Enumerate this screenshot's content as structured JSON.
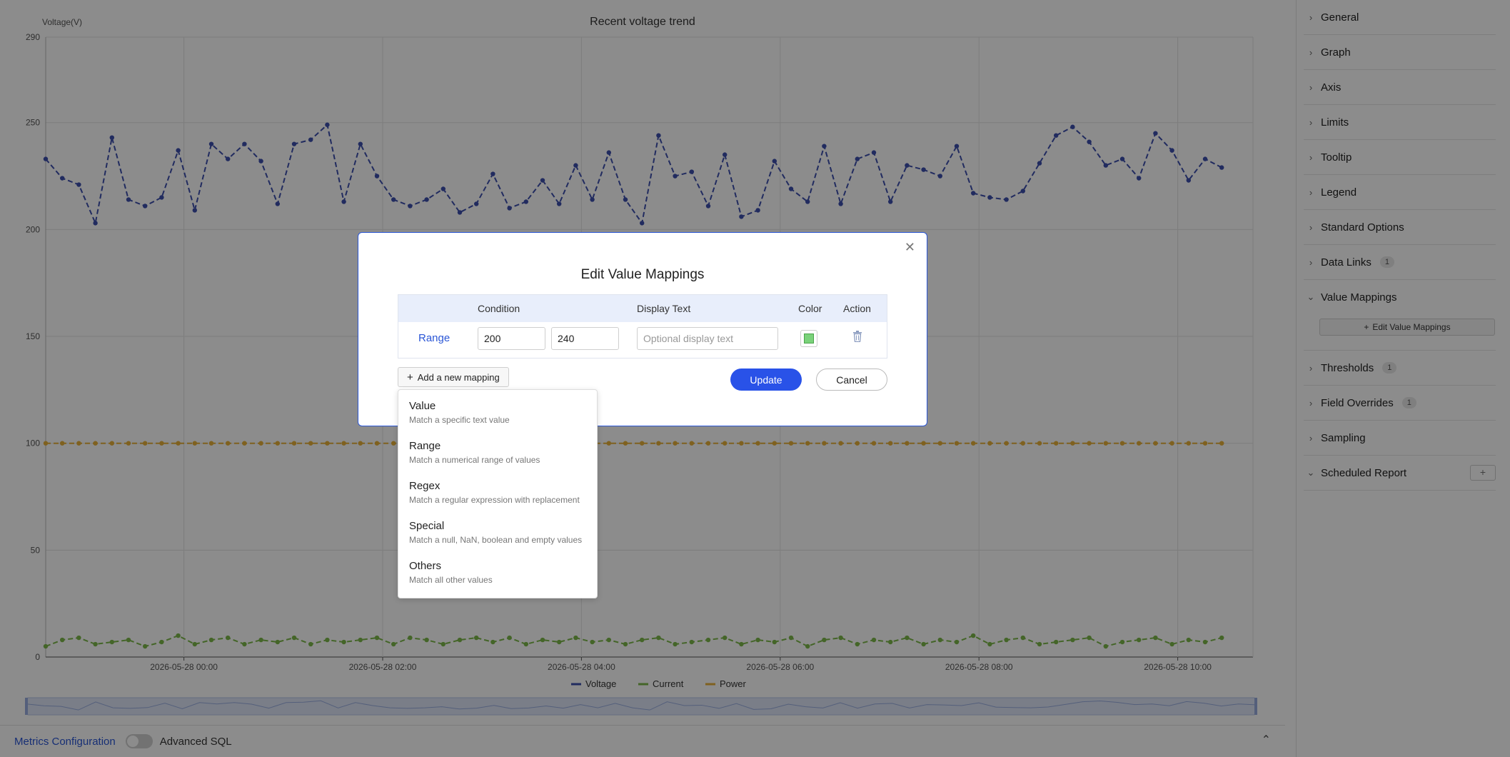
{
  "chart": {
    "title": "Recent voltage trend",
    "y_axis_label": "Voltage(V)"
  },
  "chart_data": {
    "type": "line",
    "title": "Recent voltage trend",
    "ylabel": "Voltage(V)",
    "xlabel": "",
    "ylim": [
      0,
      290
    ],
    "yticks": [
      0,
      50,
      100,
      150,
      200,
      250,
      290
    ],
    "x_tick_labels": [
      "2026-05-28 00:00",
      "2026-05-28 02:00",
      "2026-05-28 04:00",
      "2026-05-28 06:00",
      "2026-05-28 08:00",
      "2026-05-28 10:00"
    ],
    "x_start": "2026-05-27 22:38",
    "x_interval_minutes": 10,
    "grid": true,
    "legend_position": "bottom",
    "series": [
      {
        "name": "Voltage",
        "color": "#3d4fae",
        "values": [
          233,
          224,
          221,
          203,
          243,
          214,
          211,
          215,
          237,
          209,
          240,
          233,
          240,
          232,
          212,
          240,
          242,
          249,
          213,
          240,
          225,
          214,
          211,
          214,
          219,
          208,
          212,
          226,
          210,
          213,
          223,
          212,
          230,
          214,
          236,
          214,
          203,
          244,
          225,
          227,
          211,
          235,
          206,
          209,
          232,
          219,
          213,
          239,
          212,
          233,
          236,
          213,
          230,
          228,
          225,
          239,
          217,
          215,
          214,
          218,
          231,
          244,
          248,
          241,
          230,
          233,
          224,
          245,
          237,
          223,
          233,
          229
        ]
      },
      {
        "name": "Current",
        "color": "#7cb94a",
        "values": [
          5,
          8,
          9,
          6,
          7,
          8,
          5,
          7,
          10,
          6,
          8,
          9,
          6,
          8,
          7,
          9,
          6,
          8,
          7,
          8,
          9,
          6,
          9,
          8,
          6,
          8,
          9,
          7,
          9,
          6,
          8,
          7,
          9,
          7,
          8,
          6,
          8,
          9,
          6,
          7,
          8,
          9,
          6,
          8,
          7,
          9,
          5,
          8,
          9,
          6,
          8,
          7,
          9,
          6,
          8,
          7,
          10,
          6,
          8,
          9,
          6,
          7,
          8,
          9,
          5,
          7,
          8,
          9,
          6,
          8,
          7,
          9
        ]
      },
      {
        "name": "Power",
        "color": "#e8b13a",
        "values": [
          100,
          100,
          100,
          100,
          100,
          100,
          100,
          100,
          100,
          100,
          100,
          100,
          100,
          100,
          100,
          100,
          100,
          100,
          100,
          100,
          100,
          100,
          100,
          100,
          100,
          100,
          100,
          100,
          100,
          100,
          100,
          100,
          100,
          100,
          100,
          100,
          100,
          100,
          100,
          100,
          100,
          100,
          100,
          100,
          100,
          100,
          100,
          100,
          100,
          100,
          100,
          100,
          100,
          100,
          100,
          100,
          100,
          100,
          100,
          100,
          100,
          100,
          100,
          100,
          100,
          100,
          100,
          100,
          100,
          100,
          100,
          100
        ]
      }
    ]
  },
  "sidebar": {
    "items_top": [
      {
        "label": "General"
      },
      {
        "label": "Graph"
      },
      {
        "label": "Axis"
      },
      {
        "label": "Limits"
      },
      {
        "label": "Tooltip"
      },
      {
        "label": "Legend"
      },
      {
        "label": "Standard Options"
      },
      {
        "label": "Data Links",
        "badge": "1"
      }
    ],
    "value_mappings": {
      "label": "Value Mappings",
      "edit_button": "Edit Value Mappings"
    },
    "items_bottom": [
      {
        "label": "Thresholds",
        "badge": "1"
      },
      {
        "label": "Field Overrides",
        "badge": "1"
      },
      {
        "label": "Sampling"
      }
    ],
    "scheduled_report": {
      "label": "Scheduled Report",
      "add_symbol": "+"
    }
  },
  "bottom_bar": {
    "metrics_configuration": "Metrics Configuration",
    "advanced_sql": "Advanced SQL"
  },
  "modal": {
    "title": "Edit Value Mappings",
    "columns": {
      "condition": "Condition",
      "display_text": "Display Text",
      "color": "Color",
      "action": "Action"
    },
    "rows": [
      {
        "type": "Range",
        "from": "200",
        "to": "240",
        "display_placeholder": "Optional display text",
        "color": "#7ad27a"
      }
    ],
    "add_mapping": "Add a new mapping",
    "update": "Update",
    "cancel": "Cancel"
  },
  "mapping_menu": [
    {
      "title": "Value",
      "desc": "Match a specific text value"
    },
    {
      "title": "Range",
      "desc": "Match a numerical range of values"
    },
    {
      "title": "Regex",
      "desc": "Match a regular expression with replacement"
    },
    {
      "title": "Special",
      "desc": "Match a null, NaN, boolean and empty values"
    },
    {
      "title": "Others",
      "desc": "Match all other values"
    }
  ]
}
